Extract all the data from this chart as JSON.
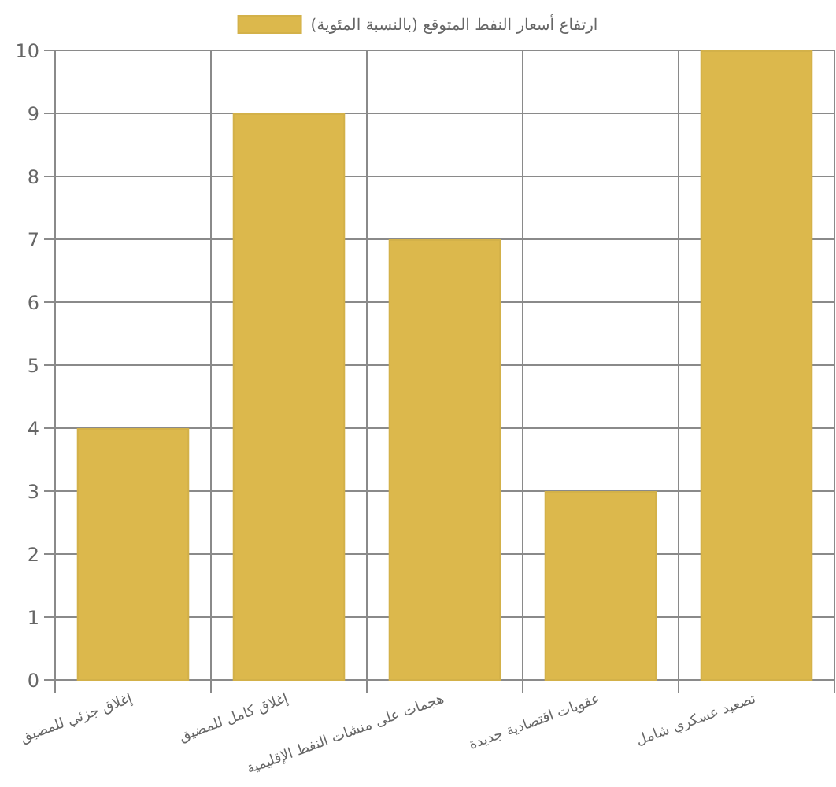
{
  "chart_data": {
    "type": "bar",
    "categories": [
      "إغلاق جزئي للمضيق",
      "إغلاق كامل للمضيق",
      "هجمات على منشات النفط الإقليمية",
      "عقوبات اقتصادية جديدة",
      "تصعيد عسكري شامل"
    ],
    "series": [
      {
        "name": "ارتفاع أسعار النفط المتوقع (بالنسبة المئوية)",
        "color": "#dcb84c",
        "values": [
          4,
          9,
          7,
          3,
          10
        ]
      }
    ],
    "ylim": [
      0,
      10
    ],
    "yticks": [
      0,
      1,
      2,
      3,
      4,
      5,
      6,
      7,
      8,
      9,
      10
    ],
    "grid": true,
    "legend": "top"
  }
}
